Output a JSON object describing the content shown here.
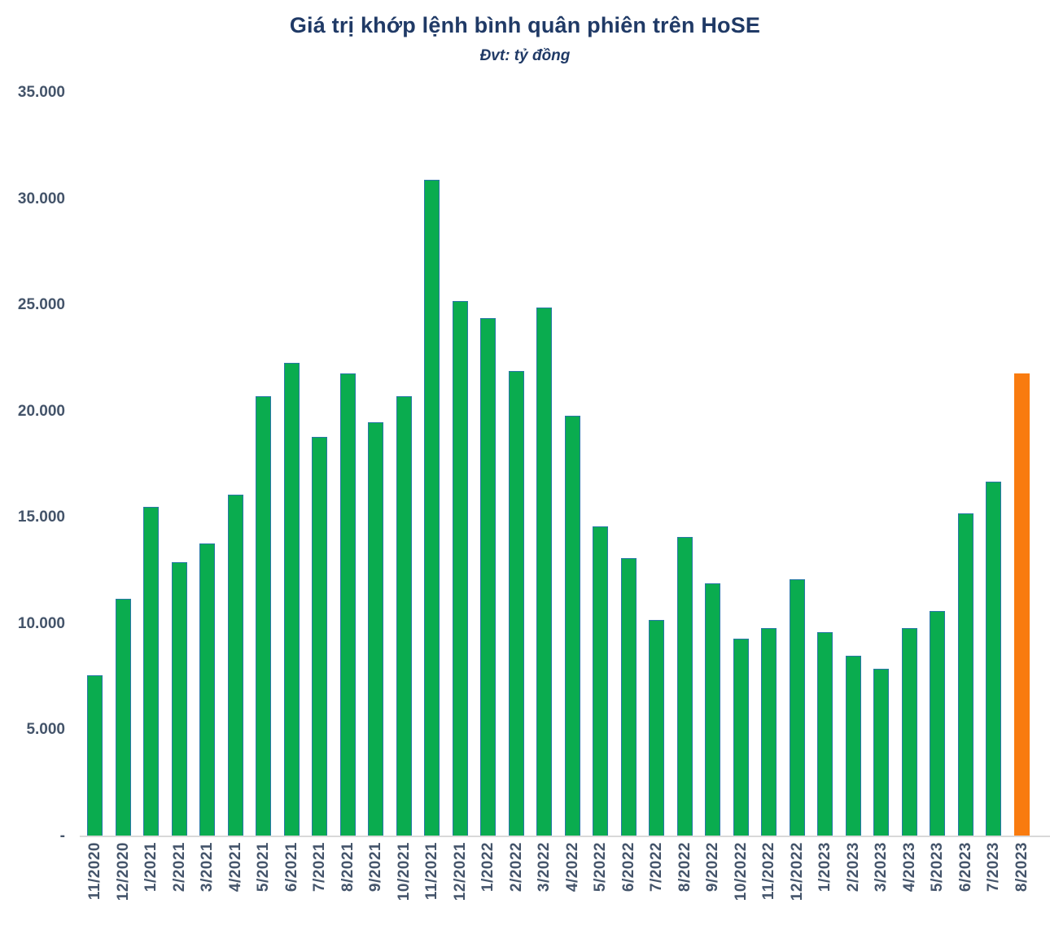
{
  "title": "Giá trị khớp lệnh bình quân phiên trên HoSE",
  "subtitle": "Đvt: tỷ đồng",
  "chart_data": {
    "type": "bar",
    "title": "Giá trị khớp lệnh bình quân phiên trên HoSE",
    "subtitle": "Đvt: tỷ đồng",
    "unit": "tỷ đồng",
    "categories": [
      "11/2020",
      "12/2020",
      "1/2021",
      "2/2021",
      "3/2021",
      "4/2021",
      "5/2021",
      "6/2021",
      "7/2021",
      "8/2021",
      "9/2021",
      "10/2021",
      "11/2021",
      "12/2021",
      "1/2022",
      "2/2022",
      "3/2022",
      "4/2022",
      "5/2022",
      "6/2022",
      "7/2022",
      "8/2022",
      "9/2022",
      "10/2022",
      "11/2022",
      "12/2022",
      "1/2023",
      "2/2023",
      "3/2023",
      "4/2023",
      "5/2023",
      "6/2023",
      "7/2023",
      "8/2023"
    ],
    "values": [
      7600,
      11200,
      15500,
      12900,
      13800,
      16100,
      20700,
      22300,
      18800,
      21800,
      19500,
      20700,
      30900,
      25200,
      24400,
      21900,
      24900,
      19800,
      14600,
      13100,
      10200,
      14100,
      11900,
      9300,
      9800,
      12100,
      9600,
      8500,
      7900,
      9800,
      10600,
      15200,
      16700,
      21800
    ],
    "highlight_index": 33,
    "ylim": [
      0,
      35000
    ],
    "yticks": [
      {
        "label": "35.000",
        "value": 35000
      },
      {
        "label": "30.000",
        "value": 30000
      },
      {
        "label": "25.000",
        "value": 25000
      },
      {
        "label": "20.000",
        "value": 20000
      },
      {
        "label": "15.000",
        "value": 15000
      },
      {
        "label": "10.000",
        "value": 10000
      },
      {
        "label": "5.000",
        "value": 5000
      },
      {
        "label": "-",
        "value": 0
      }
    ],
    "grid": false,
    "legend": false,
    "colors": {
      "bar_fill": "#0AAC4F",
      "bar_border": "#2878A6",
      "highlight_fill": "#F97B0F",
      "title_color": "#203A66",
      "axis_label_color": "#44546A",
      "axis_line_color": "#D9D9D9"
    }
  }
}
